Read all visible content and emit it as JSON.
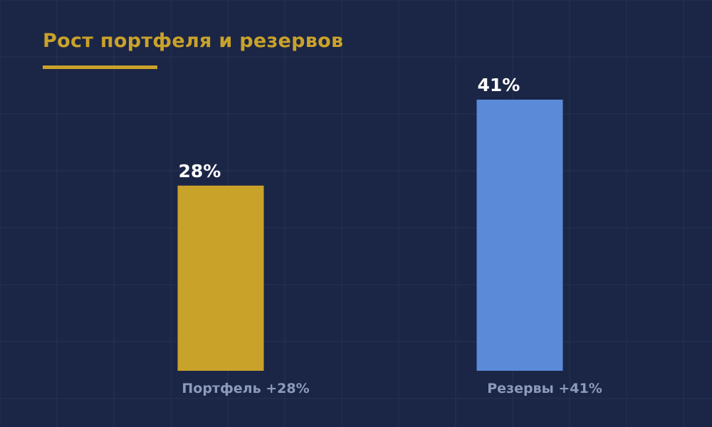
{
  "title": "Рост портфеля и резервов",
  "chart_data": {
    "type": "bar",
    "title": "Рост портфеля и резервов",
    "xlabel": "",
    "ylabel": "",
    "categories": [
      "Портфель +28%",
      "Резервы +41%"
    ],
    "values": [
      28,
      41
    ],
    "value_labels": [
      "28%",
      "41%"
    ],
    "ylim": [
      0,
      41
    ],
    "grid": true,
    "legend": "none",
    "colors": [
      "#c9a22a",
      "#5b8ad9"
    ]
  },
  "colors": {
    "background": "#1b2545",
    "grid": "#253257",
    "title": "#c9a22a",
    "value_label": "#ffffff",
    "category_label": "#8d9bbb"
  }
}
